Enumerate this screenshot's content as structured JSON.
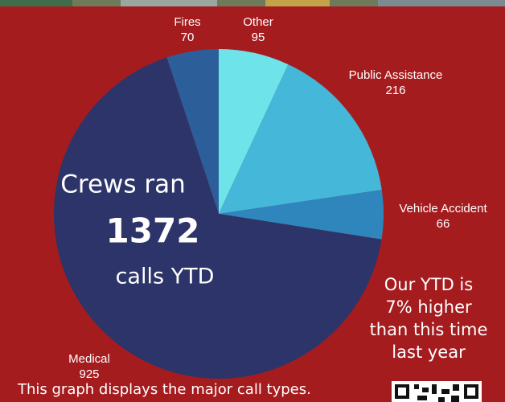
{
  "chart_data": {
    "type": "pie",
    "categories": [
      "Other",
      "Public Assistance",
      "Vehicle Accident",
      "Medical",
      "Fires"
    ],
    "values": [
      95,
      216,
      66,
      925,
      70
    ],
    "colors": [
      "#6ee3ea",
      "#45b7d8",
      "#2e86bd",
      "#2d3469",
      "#2c5f9a"
    ]
  },
  "center_text": {
    "line1": "Crews ran",
    "total": 1372,
    "line3": "calls YTD"
  },
  "note": [
    "Our YTD is",
    "7% higher",
    "than this time",
    "last year"
  ],
  "footer": "This graph displays the major call types."
}
